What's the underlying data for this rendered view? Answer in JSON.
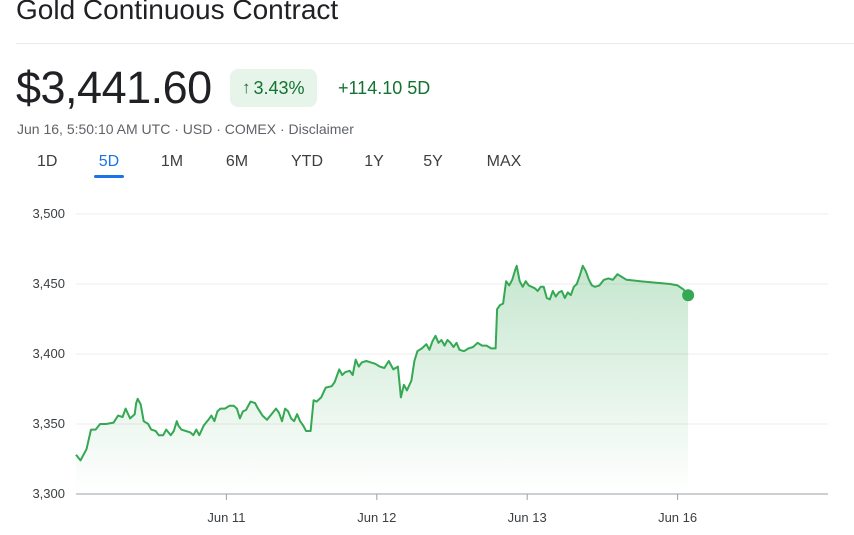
{
  "header": {
    "title": "Gold Continuous Contract",
    "price": "$3,441.60",
    "change_arrow": "↑",
    "change_percent": "3.43%",
    "change_points": "+114.10 5D",
    "meta": "Jun 16, 5:50:10 AM UTC · USD · COMEX · Disclaimer"
  },
  "tabs": [
    "1D",
    "5D",
    "1M",
    "6M",
    "YTD",
    "1Y",
    "5Y",
    "MAX"
  ],
  "active_tab": "5D",
  "colors": {
    "line": "#34a853",
    "positive": "#137333",
    "badge_bg": "#e6f4ea",
    "active_tab": "#1a73e8"
  },
  "chart_data": {
    "type": "area",
    "ylim": [
      3300,
      3500
    ],
    "yticks": [
      "3,300",
      "3,350",
      "3,400",
      "3,450",
      "3,500"
    ],
    "xticks": [
      "Jun 11",
      "Jun 12",
      "Jun 13",
      "Jun 16"
    ],
    "xtick_positions": [
      1,
      2,
      3,
      4
    ],
    "xlim": [
      0.0,
      5.0
    ],
    "grid": true,
    "series": [
      {
        "values": [
          [
            0.0,
            3328
          ],
          [
            0.03,
            3324
          ],
          [
            0.07,
            3332
          ],
          [
            0.1,
            3346
          ],
          [
            0.13,
            3346
          ],
          [
            0.16,
            3350
          ],
          [
            0.2,
            3350
          ],
          [
            0.25,
            3351
          ],
          [
            0.28,
            3356
          ],
          [
            0.31,
            3355
          ],
          [
            0.33,
            3361
          ],
          [
            0.36,
            3354
          ],
          [
            0.39,
            3357
          ],
          [
            0.4,
            3365
          ],
          [
            0.41,
            3368
          ],
          [
            0.43,
            3364
          ],
          [
            0.45,
            3352
          ],
          [
            0.48,
            3350
          ],
          [
            0.5,
            3346
          ],
          [
            0.53,
            3345
          ],
          [
            0.55,
            3342
          ],
          [
            0.58,
            3342
          ],
          [
            0.6,
            3346
          ],
          [
            0.63,
            3342
          ],
          [
            0.65,
            3345
          ],
          [
            0.67,
            3352
          ],
          [
            0.68,
            3349
          ],
          [
            0.7,
            3346
          ],
          [
            0.73,
            3345
          ],
          [
            0.76,
            3344
          ],
          [
            0.78,
            3342
          ],
          [
            0.8,
            3346
          ],
          [
            0.82,
            3342
          ],
          [
            0.85,
            3349
          ],
          [
            0.88,
            3353
          ],
          [
            0.9,
            3356
          ],
          [
            0.92,
            3352
          ],
          [
            0.94,
            3359
          ],
          [
            0.96,
            3361
          ],
          [
            0.99,
            3361
          ],
          [
            1.02,
            3363
          ],
          [
            1.05,
            3363
          ],
          [
            1.07,
            3361
          ],
          [
            1.09,
            3354
          ],
          [
            1.11,
            3359
          ],
          [
            1.13,
            3360
          ],
          [
            1.16,
            3366
          ],
          [
            1.19,
            3365
          ],
          [
            1.21,
            3361
          ],
          [
            1.24,
            3356
          ],
          [
            1.27,
            3353
          ],
          [
            1.3,
            3357
          ],
          [
            1.33,
            3361
          ],
          [
            1.35,
            3358
          ],
          [
            1.37,
            3352
          ],
          [
            1.39,
            3361
          ],
          [
            1.41,
            3359
          ],
          [
            1.43,
            3354
          ],
          [
            1.45,
            3352
          ],
          [
            1.47,
            3357
          ],
          [
            1.49,
            3352
          ],
          [
            1.51,
            3349
          ],
          [
            1.53,
            3345
          ],
          [
            1.56,
            3345
          ],
          [
            1.58,
            3367
          ],
          [
            1.6,
            3366
          ],
          [
            1.63,
            3369
          ],
          [
            1.66,
            3376
          ],
          [
            1.7,
            3377
          ],
          [
            1.72,
            3380
          ],
          [
            1.75,
            3389
          ],
          [
            1.77,
            3385
          ],
          [
            1.79,
            3387
          ],
          [
            1.82,
            3388
          ],
          [
            1.84,
            3385
          ],
          [
            1.86,
            3396
          ],
          [
            1.88,
            3391
          ],
          [
            1.9,
            3394
          ],
          [
            1.93,
            3395
          ],
          [
            1.96,
            3394
          ],
          [
            1.99,
            3393
          ],
          [
            2.02,
            3391
          ],
          [
            2.05,
            3390
          ],
          [
            2.08,
            3395
          ],
          [
            2.11,
            3389
          ],
          [
            2.14,
            3391
          ],
          [
            2.16,
            3369
          ],
          [
            2.18,
            3378
          ],
          [
            2.2,
            3374
          ],
          [
            2.23,
            3381
          ],
          [
            2.25,
            3395
          ],
          [
            2.27,
            3402
          ],
          [
            2.3,
            3404
          ],
          [
            2.33,
            3407
          ],
          [
            2.35,
            3403
          ],
          [
            2.37,
            3409
          ],
          [
            2.39,
            3413
          ],
          [
            2.41,
            3408
          ],
          [
            2.43,
            3410
          ],
          [
            2.45,
            3406
          ],
          [
            2.47,
            3410
          ],
          [
            2.49,
            3408
          ],
          [
            2.51,
            3405
          ],
          [
            2.53,
            3408
          ],
          [
            2.55,
            3403
          ],
          [
            2.58,
            3402
          ],
          [
            2.61,
            3404
          ],
          [
            2.64,
            3405
          ],
          [
            2.67,
            3408
          ],
          [
            2.7,
            3406
          ],
          [
            2.73,
            3406
          ],
          [
            2.76,
            3404
          ],
          [
            2.79,
            3404
          ],
          [
            2.8,
            3432
          ],
          [
            2.82,
            3435
          ],
          [
            2.84,
            3436
          ],
          [
            2.86,
            3452
          ],
          [
            2.88,
            3449
          ],
          [
            2.9,
            3453
          ],
          [
            2.92,
            3460
          ],
          [
            2.93,
            3463
          ],
          [
            2.95,
            3452
          ],
          [
            2.97,
            3448
          ],
          [
            2.99,
            3452
          ],
          [
            3.01,
            3449
          ],
          [
            3.03,
            3448
          ],
          [
            3.05,
            3447
          ],
          [
            3.07,
            3445
          ],
          [
            3.09,
            3448
          ],
          [
            3.11,
            3448
          ],
          [
            3.13,
            3440
          ],
          [
            3.15,
            3439
          ],
          [
            3.17,
            3445
          ],
          [
            3.19,
            3441
          ],
          [
            3.21,
            3444
          ],
          [
            3.23,
            3445
          ],
          [
            3.25,
            3440
          ],
          [
            3.27,
            3444
          ],
          [
            3.29,
            3442
          ],
          [
            3.31,
            3448
          ],
          [
            3.33,
            3450
          ],
          [
            3.35,
            3456
          ],
          [
            3.37,
            3463
          ],
          [
            3.39,
            3459
          ],
          [
            3.41,
            3453
          ],
          [
            3.43,
            3449
          ],
          [
            3.45,
            3448
          ],
          [
            3.48,
            3449
          ],
          [
            3.51,
            3453
          ],
          [
            3.54,
            3454
          ],
          [
            3.57,
            3453
          ],
          [
            3.6,
            3457
          ],
          [
            3.63,
            3455
          ],
          [
            3.66,
            3453
          ],
          [
            3.75,
            3452
          ],
          [
            3.85,
            3451
          ],
          [
            3.95,
            3450
          ],
          [
            4.0,
            3449
          ],
          [
            4.04,
            3446
          ],
          [
            4.07,
            3442
          ]
        ]
      }
    ]
  }
}
